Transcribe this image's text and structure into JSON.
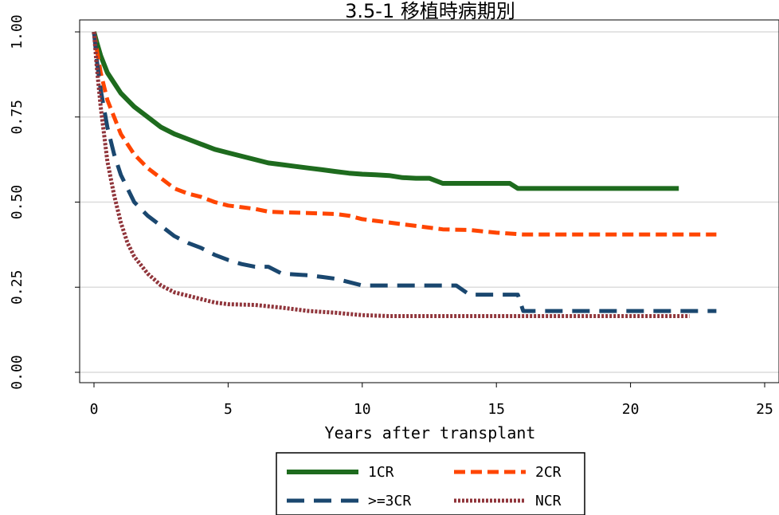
{
  "chart_data": {
    "type": "line",
    "title": "3.5-1 移植時病期別",
    "xlabel": "Years after transplant",
    "ylabel": "",
    "xlim": [
      -0.5,
      25.5
    ],
    "ylim": [
      -0.02,
      1.04
    ],
    "xticks": [
      0,
      5,
      10,
      15,
      20,
      25
    ],
    "yticks": [
      0,
      0.25,
      0.5,
      0.75,
      1
    ],
    "xtick_labels": [
      "0",
      "5",
      "10",
      "15",
      "20",
      "25"
    ],
    "ytick_labels": [
      "0.00",
      "0.25",
      "0.50",
      "0.75",
      "1.00"
    ],
    "grid": "horizontal",
    "legend_position": "bottom",
    "series": [
      {
        "name": "1CR",
        "color": "#1e6b1e",
        "style": "solid",
        "points": [
          [
            0,
            1.0
          ],
          [
            0.1,
            0.97
          ],
          [
            0.25,
            0.93
          ],
          [
            0.5,
            0.88
          ],
          [
            0.75,
            0.85
          ],
          [
            1,
            0.82
          ],
          [
            1.5,
            0.78
          ],
          [
            2,
            0.75
          ],
          [
            2.5,
            0.72
          ],
          [
            3,
            0.7
          ],
          [
            3.5,
            0.685
          ],
          [
            4,
            0.67
          ],
          [
            4.5,
            0.655
          ],
          [
            5,
            0.645
          ],
          [
            5.5,
            0.635
          ],
          [
            6,
            0.625
          ],
          [
            6.5,
            0.615
          ],
          [
            7,
            0.61
          ],
          [
            7.5,
            0.605
          ],
          [
            8,
            0.6
          ],
          [
            8.5,
            0.595
          ],
          [
            9,
            0.59
          ],
          [
            9.5,
            0.585
          ],
          [
            10,
            0.582
          ],
          [
            10.5,
            0.58
          ],
          [
            11,
            0.578
          ],
          [
            11.5,
            0.572
          ],
          [
            12,
            0.57
          ],
          [
            12.5,
            0.57
          ],
          [
            13,
            0.555
          ],
          [
            15.5,
            0.555
          ],
          [
            15.8,
            0.54
          ],
          [
            21.8,
            0.54
          ]
        ]
      },
      {
        "name": "2CR",
        "color": "#ff4500",
        "style": "dash",
        "points": [
          [
            0,
            1.0
          ],
          [
            0.1,
            0.95
          ],
          [
            0.25,
            0.88
          ],
          [
            0.5,
            0.8
          ],
          [
            0.75,
            0.75
          ],
          [
            1,
            0.7
          ],
          [
            1.5,
            0.64
          ],
          [
            2,
            0.6
          ],
          [
            2.5,
            0.57
          ],
          [
            3,
            0.54
          ],
          [
            3.5,
            0.525
          ],
          [
            4,
            0.515
          ],
          [
            4.5,
            0.5
          ],
          [
            5,
            0.49
          ],
          [
            5.5,
            0.485
          ],
          [
            6,
            0.48
          ],
          [
            6.5,
            0.472
          ],
          [
            7,
            0.47
          ],
          [
            8,
            0.468
          ],
          [
            9,
            0.465
          ],
          [
            9.5,
            0.46
          ],
          [
            10,
            0.45
          ],
          [
            10.5,
            0.445
          ],
          [
            11,
            0.44
          ],
          [
            11.5,
            0.435
          ],
          [
            12,
            0.43
          ],
          [
            13,
            0.42
          ],
          [
            14,
            0.418
          ],
          [
            15,
            0.41
          ],
          [
            16,
            0.405
          ],
          [
            23.2,
            0.405
          ]
        ]
      },
      {
        "name": ">=3CR",
        "color": "#1a476f",
        "style": "longdash",
        "points": [
          [
            0,
            1.0
          ],
          [
            0.1,
            0.92
          ],
          [
            0.25,
            0.83
          ],
          [
            0.5,
            0.72
          ],
          [
            0.75,
            0.64
          ],
          [
            1,
            0.58
          ],
          [
            1.5,
            0.5
          ],
          [
            2,
            0.46
          ],
          [
            2.5,
            0.43
          ],
          [
            3,
            0.4
          ],
          [
            3.5,
            0.38
          ],
          [
            4,
            0.365
          ],
          [
            4.5,
            0.345
          ],
          [
            5,
            0.33
          ],
          [
            5.5,
            0.318
          ],
          [
            6,
            0.31
          ],
          [
            6.5,
            0.31
          ],
          [
            7,
            0.29
          ],
          [
            8,
            0.285
          ],
          [
            8.5,
            0.28
          ],
          [
            9,
            0.275
          ],
          [
            9.5,
            0.265
          ],
          [
            10,
            0.255
          ],
          [
            13.5,
            0.255
          ],
          [
            14,
            0.228
          ],
          [
            15.8,
            0.228
          ],
          [
            16,
            0.18
          ],
          [
            23.2,
            0.18
          ]
        ]
      },
      {
        "name": "NCR",
        "color": "#90353b",
        "style": "dot",
        "points": [
          [
            0,
            1.0
          ],
          [
            0.1,
            0.9
          ],
          [
            0.25,
            0.78
          ],
          [
            0.5,
            0.62
          ],
          [
            0.75,
            0.52
          ],
          [
            1,
            0.44
          ],
          [
            1.25,
            0.38
          ],
          [
            1.5,
            0.34
          ],
          [
            2,
            0.29
          ],
          [
            2.5,
            0.255
          ],
          [
            3,
            0.235
          ],
          [
            3.5,
            0.225
          ],
          [
            4,
            0.215
          ],
          [
            4.5,
            0.205
          ],
          [
            5,
            0.2
          ],
          [
            6,
            0.198
          ],
          [
            7,
            0.19
          ],
          [
            8,
            0.18
          ],
          [
            9,
            0.175
          ],
          [
            10,
            0.168
          ],
          [
            11,
            0.165
          ],
          [
            15,
            0.165
          ],
          [
            22.2,
            0.165
          ]
        ]
      }
    ]
  }
}
